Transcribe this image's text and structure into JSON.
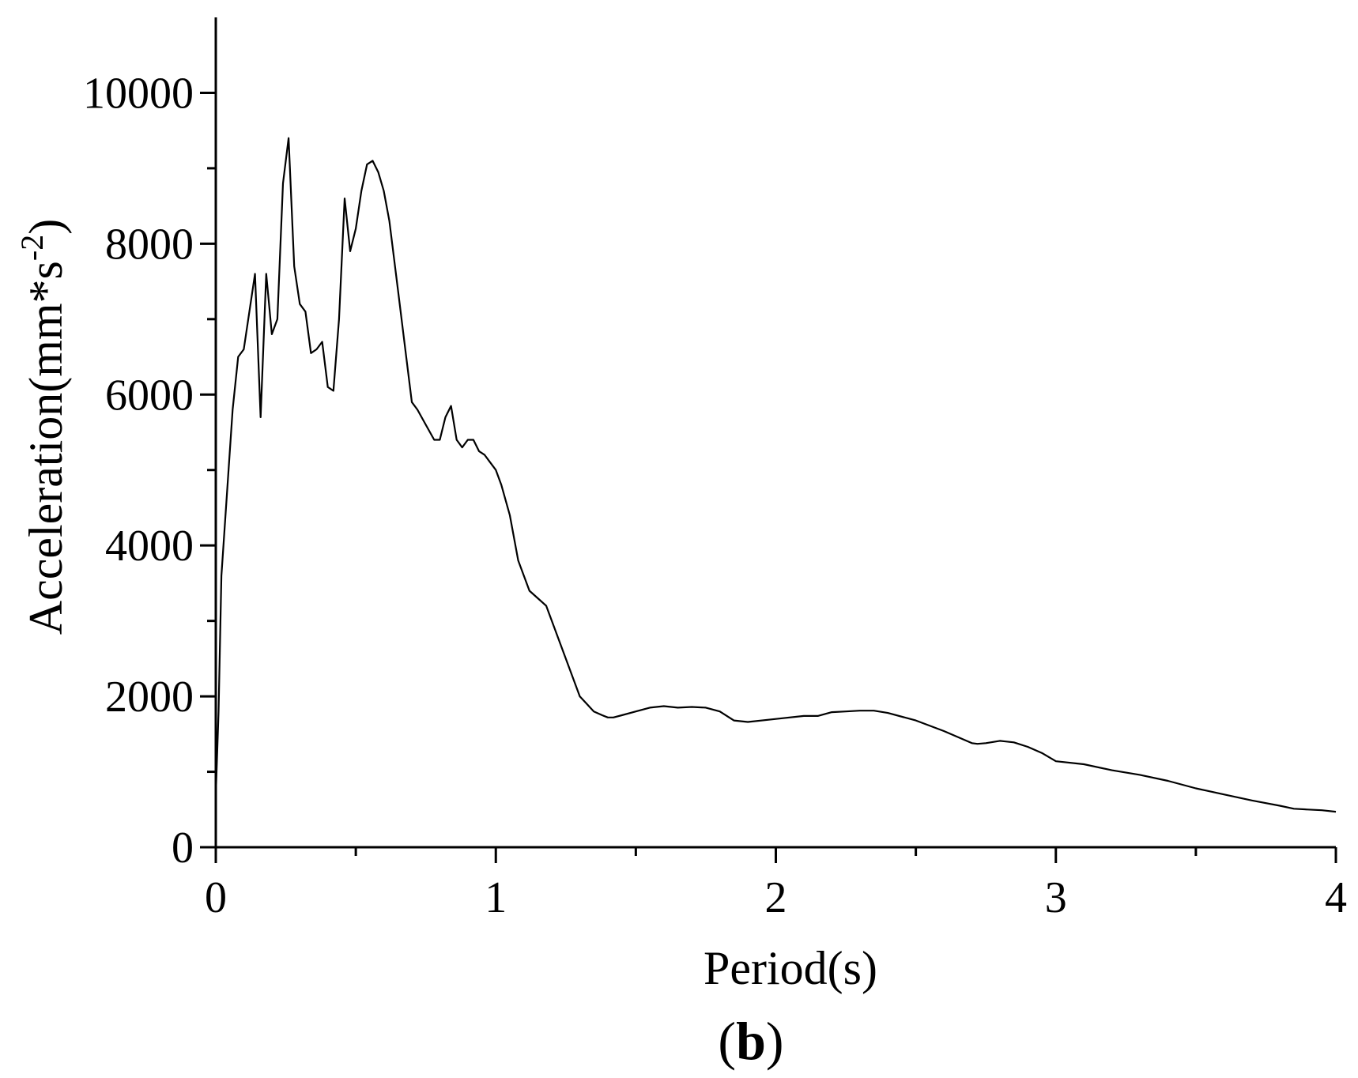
{
  "chart_data": {
    "type": "line",
    "title": "",
    "panel_label": {
      "open": "(",
      "letter": "b",
      "close": ")"
    },
    "xlabel": "Period(s)",
    "ylabel": {
      "base": "Acceleration(mm*s",
      "sup": "-2",
      "close": ")"
    },
    "xlim": [
      0,
      4
    ],
    "ylim": [
      0,
      11000
    ],
    "x_ticks": [
      {
        "value": 0,
        "label": "0"
      },
      {
        "value": 1,
        "label": "1"
      },
      {
        "value": 2,
        "label": "2"
      },
      {
        "value": 3,
        "label": "3"
      },
      {
        "value": 4,
        "label": "4"
      }
    ],
    "x_minor_ticks": [
      0.5,
      1.5,
      2.5,
      3.5
    ],
    "y_ticks": [
      {
        "value": 0,
        "label": "0"
      },
      {
        "value": 2000,
        "label": "2000"
      },
      {
        "value": 4000,
        "label": "4000"
      },
      {
        "value": 6000,
        "label": "6000"
      },
      {
        "value": 8000,
        "label": "8000"
      },
      {
        "value": 10000,
        "label": "10000"
      }
    ],
    "y_minor_ticks": [
      1000,
      3000,
      5000,
      7000,
      9000
    ],
    "grid": false,
    "line_color": "#000000",
    "series": [
      {
        "x": [
          0.0,
          0.01,
          0.02,
          0.04,
          0.06,
          0.08,
          0.1,
          0.14,
          0.16,
          0.18,
          0.2,
          0.22,
          0.24,
          0.26,
          0.28,
          0.3,
          0.32,
          0.34,
          0.36,
          0.38,
          0.4,
          0.42,
          0.44,
          0.46,
          0.48,
          0.5,
          0.52,
          0.54,
          0.56,
          0.58,
          0.6,
          0.62,
          0.65,
          0.68,
          0.7,
          0.72,
          0.75,
          0.78,
          0.8,
          0.82,
          0.84,
          0.86,
          0.88,
          0.9,
          0.92,
          0.94,
          0.96,
          0.98,
          1.0,
          1.02,
          1.05,
          1.08,
          1.1,
          1.12,
          1.15,
          1.18,
          1.2,
          1.25,
          1.3,
          1.35,
          1.38,
          1.4,
          1.42,
          1.45,
          1.5,
          1.55,
          1.6,
          1.65,
          1.7,
          1.75,
          1.8,
          1.85,
          1.9,
          2.0,
          2.1,
          2.15,
          2.2,
          2.25,
          2.3,
          2.35,
          2.4,
          2.5,
          2.6,
          2.7,
          2.72,
          2.75,
          2.8,
          2.85,
          2.9,
          2.95,
          3.0,
          3.1,
          3.2,
          3.3,
          3.4,
          3.5,
          3.6,
          3.7,
          3.8,
          3.85,
          3.9,
          3.95,
          4.0
        ],
        "y": [
          700,
          1800,
          3600,
          4700,
          5800,
          6500,
          6600,
          7600,
          5700,
          7600,
          6800,
          7000,
          8800,
          9400,
          7700,
          7200,
          7100,
          6550,
          6600,
          6700,
          6100,
          6050,
          7000,
          8600,
          7900,
          8200,
          8700,
          9050,
          9100,
          8950,
          8700,
          8300,
          7400,
          6500,
          5900,
          5800,
          5600,
          5400,
          5400,
          5700,
          5850,
          5400,
          5300,
          5400,
          5400,
          5250,
          5200,
          5100,
          5000,
          4800,
          4400,
          3800,
          3600,
          3400,
          3300,
          3200,
          3000,
          2500,
          2000,
          1800,
          1750,
          1720,
          1720,
          1750,
          1800,
          1850,
          1870,
          1850,
          1860,
          1850,
          1800,
          1680,
          1660,
          1700,
          1740,
          1740,
          1790,
          1800,
          1810,
          1810,
          1780,
          1680,
          1540,
          1380,
          1370,
          1380,
          1410,
          1390,
          1330,
          1250,
          1140,
          1100,
          1020,
          960,
          880,
          780,
          700,
          620,
          550,
          510,
          500,
          490,
          470
        ]
      }
    ]
  }
}
